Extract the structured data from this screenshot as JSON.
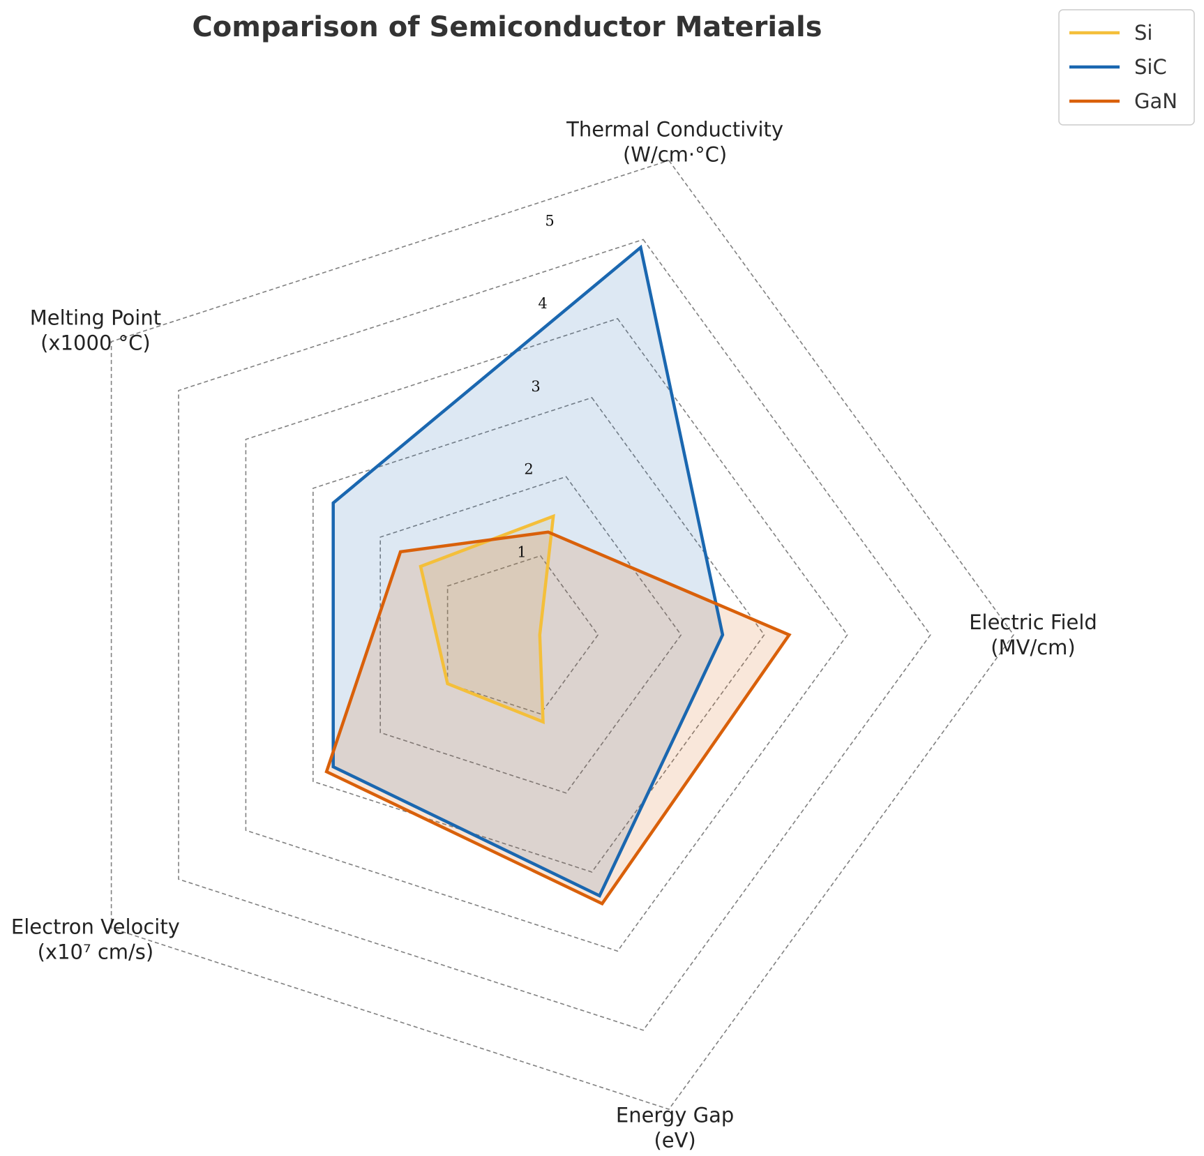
{
  "chart_data": {
    "type": "radar",
    "title": "Comparison of Semiconductor Materials",
    "axes": [
      {
        "line1": "Thermal Conductivity",
        "line2": "(W/cm·°C)"
      },
      {
        "line1": "Electric Field",
        "line2": "(MV/cm)"
      },
      {
        "line1": "Energy Gap",
        "line2": "(eV)"
      },
      {
        "line1": "Electron Velocity",
        "line2": "(x10⁷ cm/s)"
      },
      {
        "line1": "Melting Point",
        "line2": "(x1000 °C)"
      }
    ],
    "rlim": [
      0,
      6
    ],
    "rticks": [
      "1",
      "2",
      "3",
      "4",
      "5"
    ],
    "grid": true,
    "legend_position": "top-right",
    "series": [
      {
        "name": "Si",
        "color": "#f4bf3a",
        "values": [
          1.5,
          0.3,
          1.1,
          1.0,
          1.4
        ]
      },
      {
        "name": "SiC",
        "color": "#1a67b0",
        "values": [
          4.9,
          2.5,
          3.3,
          2.7,
          2.7
        ]
      },
      {
        "name": "GaN",
        "color": "#d9600a",
        "values": [
          1.3,
          3.3,
          3.4,
          2.8,
          1.7
        ]
      }
    ]
  }
}
